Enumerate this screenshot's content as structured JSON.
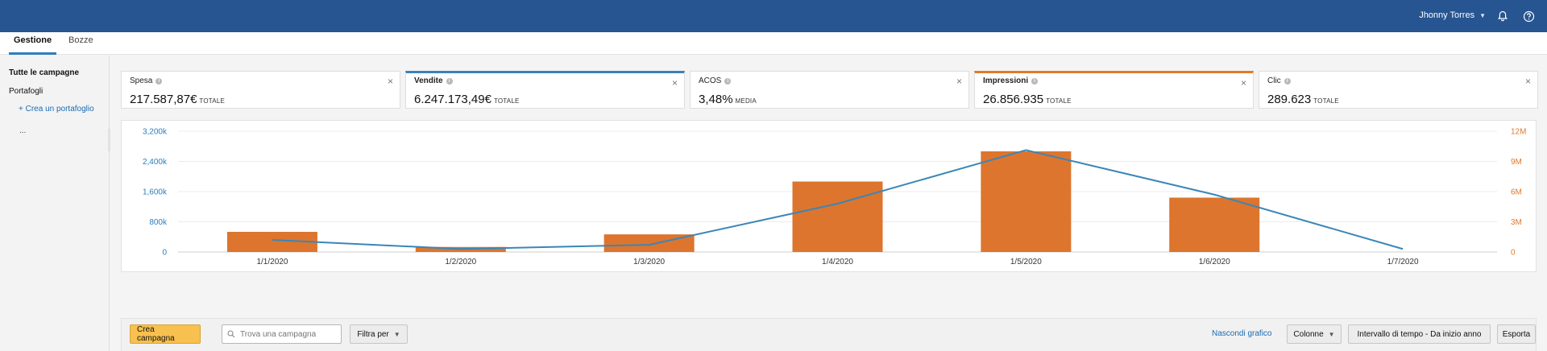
{
  "header": {
    "user_name": "Jhonny Torres",
    "icons": [
      "bell-icon",
      "help-icon"
    ]
  },
  "tabs": [
    {
      "label": "Gestione",
      "active": true
    },
    {
      "label": "Bozze",
      "active": false
    }
  ],
  "sidebar": {
    "all_campaigns": "Tutte le campagne",
    "portfolios": "Portafogli",
    "create_portfolio": "+ Crea un portafoglio",
    "more": "...",
    "collapse": "«"
  },
  "metrics": [
    {
      "label": "Spesa",
      "value": "217.587,87€",
      "suffix": "TOTALE",
      "selected": null
    },
    {
      "label": "Vendite",
      "value": "6.247.173,49€",
      "suffix": "TOTALE",
      "selected": "blue"
    },
    {
      "label": "ACOS",
      "value": "3,48%",
      "suffix": "MEDIA",
      "selected": null
    },
    {
      "label": "Impressioni",
      "value": "26.856.935",
      "suffix": "TOTALE",
      "selected": "orange"
    },
    {
      "label": "Clic",
      "value": "289.623",
      "suffix": "TOTALE",
      "selected": null
    }
  ],
  "chart_data": {
    "type": "bar",
    "categories": [
      "1/1/2020",
      "1/2/2020",
      "1/3/2020",
      "1/4/2020",
      "1/5/2020",
      "1/6/2020",
      "1/7/2020"
    ],
    "left_axis": {
      "ticks": [
        "0",
        "800k",
        "1,600k",
        "2,400k",
        "3,200k"
      ],
      "ylim": [
        0,
        3200000
      ]
    },
    "right_axis": {
      "ticks": [
        "0",
        "3M",
        "6M",
        "9M",
        "12M"
      ],
      "ylim": [
        0,
        12000000
      ]
    },
    "series": [
      {
        "type": "bar",
        "axis": "right",
        "color": "#dd752e",
        "values": [
          2000000,
          500000,
          1750000,
          7000000,
          10000000,
          5400000,
          0
        ]
      },
      {
        "type": "line",
        "axis": "left",
        "color": "#3a86b8",
        "values": [
          320000,
          80000,
          190000,
          1280000,
          2700000,
          1520000,
          80000
        ]
      }
    ],
    "grid": true,
    "colors": {
      "left_axis": "#2b7fbd",
      "right_axis": "#e07a2d"
    }
  },
  "toolbar": {
    "create_campaign": "Crea campagna",
    "search_placeholder": "Trova una campagna",
    "filter": "Filtra per",
    "hide_chart": "Nascondi grafico",
    "columns": "Colonne",
    "date_range": "Intervallo di tempo - Da inizio anno",
    "export": "Esporta"
  }
}
